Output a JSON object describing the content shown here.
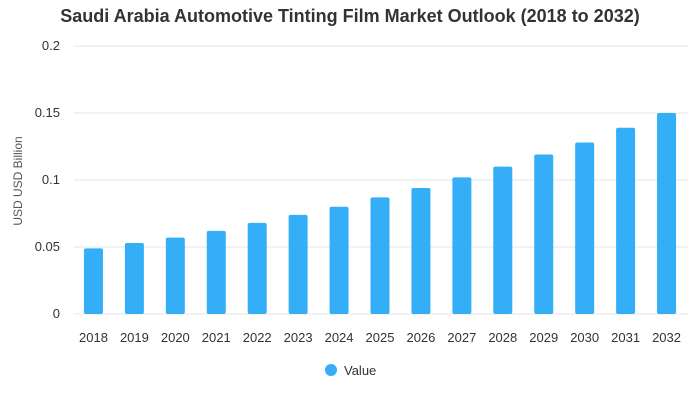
{
  "chart_data": {
    "type": "bar",
    "title": "Saudi Arabia Automotive Tinting Film Market Outlook (2018 to 2032)",
    "xlabel": "",
    "ylabel": "USD USD Billion",
    "categories": [
      "2018",
      "2019",
      "2020",
      "2021",
      "2022",
      "2023",
      "2024",
      "2025",
      "2026",
      "2027",
      "2028",
      "2029",
      "2030",
      "2031",
      "2032"
    ],
    "series": [
      {
        "name": "Value",
        "values": [
          0.049,
          0.053,
          0.057,
          0.062,
          0.068,
          0.074,
          0.08,
          0.087,
          0.094,
          0.102,
          0.11,
          0.119,
          0.128,
          0.139,
          0.15
        ]
      }
    ],
    "ylim": [
      0,
      0.2
    ],
    "yticks": [
      "0",
      "0.05",
      "0.1",
      "0.15",
      "0.2"
    ],
    "grid": true,
    "legend_position": "bottom-center",
    "colors": {
      "bar": "#33AEF7",
      "grid": "#E6E6E6",
      "text": "#333333"
    }
  }
}
